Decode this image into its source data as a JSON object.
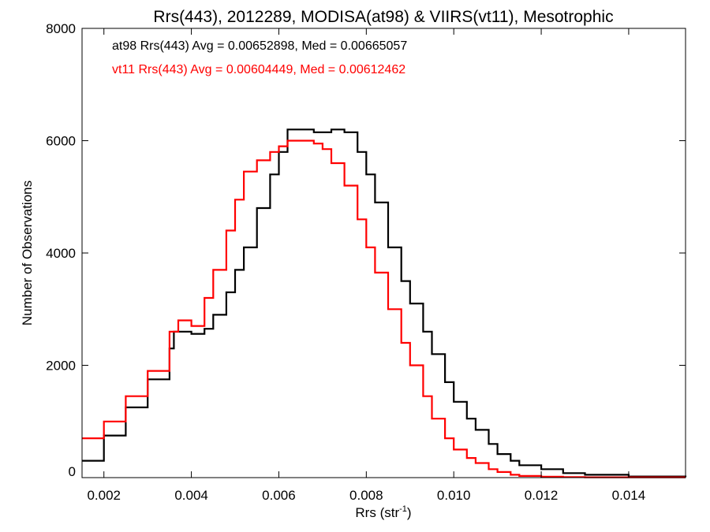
{
  "chart_data": {
    "type": "line",
    "title": "Rrs(443), 2012289, MODISA(at98) & VIIRS(vt11), Mesotrophic",
    "xlabel_main": "Rrs (str",
    "xlabel_sup": "-1",
    "xlabel_close": ")",
    "ylabel": "Number of Observations",
    "xlim": [
      0.0015,
      0.0153
    ],
    "ylim": [
      0,
      8000
    ],
    "xticks": [
      0.002,
      0.004,
      0.006,
      0.008,
      0.01,
      0.012,
      0.014
    ],
    "xtick_labels": [
      "0.002",
      "0.004",
      "0.006",
      "0.008",
      "0.010",
      "0.012",
      "0.014"
    ],
    "yticks": [
      0,
      2000,
      4000,
      6000,
      8000
    ],
    "ytick_labels": [
      "0",
      "2000",
      "4000",
      "6000",
      "8000"
    ],
    "grid": false,
    "step": true,
    "annotations": [
      "at98 Rrs(443) Avg = 0.00652898, Med = 0.00665057",
      "vt11 Rrs(443) Avg = 0.00604449, Med = 0.00612462"
    ],
    "series": [
      {
        "name": "at98",
        "color": "#000000",
        "x": [
          0.0015,
          0.002,
          0.0025,
          0.003,
          0.0035,
          0.0036,
          0.004,
          0.0043,
          0.0045,
          0.0048,
          0.005,
          0.0052,
          0.0055,
          0.0058,
          0.006,
          0.0062,
          0.0065,
          0.0068,
          0.007,
          0.0072,
          0.0075,
          0.0078,
          0.008,
          0.0082,
          0.0085,
          0.0088,
          0.009,
          0.0093,
          0.0095,
          0.0098,
          0.01,
          0.0103,
          0.0105,
          0.0108,
          0.011,
          0.0113,
          0.0115,
          0.012,
          0.0125,
          0.013,
          0.014,
          0.0153
        ],
        "y": [
          300,
          750,
          1250,
          1750,
          2300,
          2600,
          2560,
          2650,
          2900,
          3300,
          3700,
          4100,
          4800,
          5400,
          5800,
          6200,
          6200,
          6150,
          6150,
          6200,
          6150,
          5800,
          5400,
          4900,
          4100,
          3500,
          3100,
          2600,
          2200,
          1700,
          1350,
          1050,
          850,
          600,
          420,
          300,
          220,
          150,
          80,
          50,
          20,
          10
        ]
      },
      {
        "name": "vt11",
        "color": "#ff0000",
        "x": [
          0.0015,
          0.002,
          0.0025,
          0.003,
          0.0035,
          0.0037,
          0.004,
          0.0043,
          0.0045,
          0.0048,
          0.005,
          0.0052,
          0.0055,
          0.0058,
          0.006,
          0.0062,
          0.0065,
          0.0068,
          0.007,
          0.0072,
          0.0075,
          0.0078,
          0.008,
          0.0082,
          0.0085,
          0.0088,
          0.009,
          0.0093,
          0.0095,
          0.0098,
          0.01,
          0.0103,
          0.0105,
          0.0108,
          0.011,
          0.0113,
          0.0115,
          0.012,
          0.0125,
          0.013,
          0.014,
          0.0153
        ],
        "y": [
          700,
          1000,
          1450,
          1900,
          2600,
          2800,
          2700,
          3200,
          3700,
          4400,
          4950,
          5450,
          5650,
          5800,
          5900,
          6000,
          6000,
          5950,
          5850,
          5600,
          5200,
          4600,
          4100,
          3650,
          3000,
          2400,
          2000,
          1450,
          1050,
          700,
          500,
          350,
          260,
          150,
          100,
          50,
          30,
          15,
          10,
          5,
          5,
          5
        ]
      }
    ]
  }
}
